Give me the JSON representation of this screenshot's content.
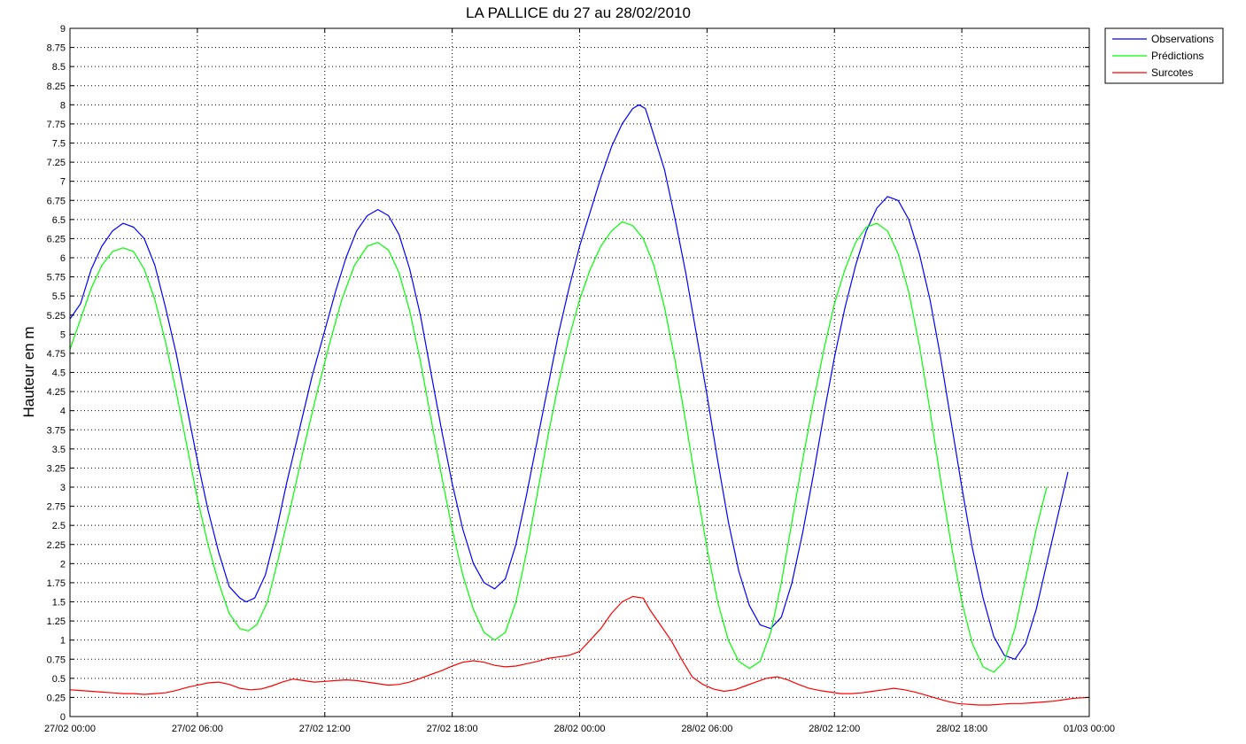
{
  "chart_data": {
    "type": "line",
    "title": "LA PALLICE du 27 au 28/02/2010",
    "ylabel": "Hauteur en m",
    "xlabel": "",
    "grid": true,
    "legend_position": "top-right-outside",
    "x_range_hours": [
      0,
      48
    ],
    "ylim": [
      0,
      9
    ],
    "y_ticks": [
      0,
      0.25,
      0.5,
      0.75,
      1,
      1.25,
      1.5,
      1.75,
      2,
      2.25,
      2.5,
      2.75,
      3,
      3.25,
      3.5,
      3.75,
      4,
      4.25,
      4.5,
      4.75,
      5,
      5.25,
      5.5,
      5.75,
      6,
      6.25,
      6.5,
      6.75,
      7,
      7.25,
      7.5,
      7.75,
      8,
      8.25,
      8.5,
      8.75,
      9
    ],
    "y_tick_labels": [
      "0",
      "0.25",
      "0.5",
      "0.75",
      "1",
      "1.25",
      "1.5",
      "1.75",
      "2",
      "2.25",
      "2.5",
      "2.75",
      "3",
      "3.25",
      "3.5",
      "3.75",
      "4",
      "4.25",
      "4.5",
      "4.75",
      "5",
      "5.25",
      "5.5",
      "5.75",
      "6",
      "6.25",
      "6.5",
      "6.75",
      "7",
      "7.25",
      "7.5",
      "7.75",
      "8",
      "8.25",
      "8.5",
      "8.75",
      "9"
    ],
    "x_ticks": [
      0,
      6,
      12,
      18,
      24,
      30,
      36,
      42,
      48
    ],
    "x_tick_labels": [
      "27/02 00:00",
      "27/02 06:00",
      "27/02 12:00",
      "27/02 18:00",
      "28/02 00:00",
      "28/02 06:00",
      "28/02 12:00",
      "28/02 18:00",
      "01/03 00:00"
    ],
    "series": [
      {
        "name": "Observations",
        "color": "#0000ff",
        "points": [
          [
            0,
            5.2
          ],
          [
            0.5,
            5.4
          ],
          [
            1,
            5.85
          ],
          [
            1.5,
            6.15
          ],
          [
            2,
            6.35
          ],
          [
            2.5,
            6.45
          ],
          [
            3,
            6.4
          ],
          [
            3.5,
            6.25
          ],
          [
            4,
            5.9
          ],
          [
            4.5,
            5.35
          ],
          [
            5,
            4.75
          ],
          [
            5.5,
            4.05
          ],
          [
            6,
            3.35
          ],
          [
            6.5,
            2.7
          ],
          [
            7,
            2.15
          ],
          [
            7.5,
            1.7
          ],
          [
            8,
            1.55
          ],
          [
            8.3,
            1.5
          ],
          [
            8.7,
            1.55
          ],
          [
            9.2,
            1.85
          ],
          [
            9.7,
            2.4
          ],
          [
            10.2,
            3.05
          ],
          [
            10.8,
            3.75
          ],
          [
            11.4,
            4.45
          ],
          [
            12,
            5.05
          ],
          [
            12.5,
            5.55
          ],
          [
            13,
            6.0
          ],
          [
            13.5,
            6.35
          ],
          [
            14,
            6.55
          ],
          [
            14.5,
            6.63
          ],
          [
            15,
            6.55
          ],
          [
            15.5,
            6.3
          ],
          [
            16,
            5.85
          ],
          [
            16.5,
            5.25
          ],
          [
            17,
            4.5
          ],
          [
            17.5,
            3.75
          ],
          [
            18,
            3.05
          ],
          [
            18.5,
            2.45
          ],
          [
            19,
            2.0
          ],
          [
            19.5,
            1.75
          ],
          [
            20,
            1.67
          ],
          [
            20.5,
            1.8
          ],
          [
            21,
            2.25
          ],
          [
            21.5,
            2.9
          ],
          [
            22,
            3.6
          ],
          [
            22.5,
            4.3
          ],
          [
            23,
            5.0
          ],
          [
            23.5,
            5.6
          ],
          [
            24,
            6.15
          ],
          [
            24.5,
            6.6
          ],
          [
            25,
            7.05
          ],
          [
            25.5,
            7.45
          ],
          [
            26,
            7.75
          ],
          [
            26.5,
            7.95
          ],
          [
            26.8,
            8.0
          ],
          [
            27.1,
            7.95
          ],
          [
            27.5,
            7.6
          ],
          [
            28,
            7.15
          ],
          [
            28.5,
            6.5
          ],
          [
            29,
            5.8
          ],
          [
            29.5,
            5.0
          ],
          [
            30,
            4.2
          ],
          [
            30.5,
            3.35
          ],
          [
            31,
            2.55
          ],
          [
            31.5,
            1.9
          ],
          [
            32,
            1.45
          ],
          [
            32.5,
            1.2
          ],
          [
            33,
            1.15
          ],
          [
            33.5,
            1.3
          ],
          [
            34,
            1.75
          ],
          [
            34.5,
            2.4
          ],
          [
            35,
            3.15
          ],
          [
            35.5,
            3.95
          ],
          [
            36,
            4.7
          ],
          [
            36.5,
            5.35
          ],
          [
            37,
            5.9
          ],
          [
            37.5,
            6.35
          ],
          [
            38,
            6.65
          ],
          [
            38.5,
            6.8
          ],
          [
            39,
            6.75
          ],
          [
            39.5,
            6.5
          ],
          [
            40,
            6.05
          ],
          [
            40.5,
            5.45
          ],
          [
            41,
            4.7
          ],
          [
            41.5,
            3.85
          ],
          [
            42,
            3.0
          ],
          [
            42.5,
            2.2
          ],
          [
            43,
            1.55
          ],
          [
            43.5,
            1.05
          ],
          [
            44,
            0.8
          ],
          [
            44.5,
            0.75
          ],
          [
            45,
            0.95
          ],
          [
            45.5,
            1.4
          ],
          [
            46,
            2.0
          ],
          [
            46.5,
            2.6
          ],
          [
            47,
            3.2
          ]
        ]
      },
      {
        "name": "Prédictions",
        "color": "#00ff00",
        "points": [
          [
            0,
            4.8
          ],
          [
            0.5,
            5.2
          ],
          [
            1,
            5.6
          ],
          [
            1.5,
            5.9
          ],
          [
            2,
            6.08
          ],
          [
            2.5,
            6.13
          ],
          [
            3,
            6.08
          ],
          [
            3.5,
            5.85
          ],
          [
            4,
            5.45
          ],
          [
            4.5,
            4.9
          ],
          [
            5,
            4.25
          ],
          [
            5.5,
            3.55
          ],
          [
            6,
            2.85
          ],
          [
            6.5,
            2.25
          ],
          [
            7,
            1.75
          ],
          [
            7.5,
            1.35
          ],
          [
            8,
            1.15
          ],
          [
            8.4,
            1.12
          ],
          [
            8.8,
            1.2
          ],
          [
            9.3,
            1.5
          ],
          [
            9.8,
            2.05
          ],
          [
            10.4,
            2.75
          ],
          [
            11,
            3.5
          ],
          [
            11.6,
            4.2
          ],
          [
            12.2,
            4.85
          ],
          [
            12.8,
            5.45
          ],
          [
            13.4,
            5.9
          ],
          [
            14,
            6.15
          ],
          [
            14.5,
            6.2
          ],
          [
            15,
            6.1
          ],
          [
            15.5,
            5.8
          ],
          [
            16,
            5.3
          ],
          [
            16.5,
            4.65
          ],
          [
            17,
            3.9
          ],
          [
            17.5,
            3.15
          ],
          [
            18,
            2.45
          ],
          [
            18.5,
            1.85
          ],
          [
            19,
            1.4
          ],
          [
            19.5,
            1.1
          ],
          [
            20,
            1.0
          ],
          [
            20.5,
            1.1
          ],
          [
            21,
            1.5
          ],
          [
            21.5,
            2.15
          ],
          [
            22,
            2.9
          ],
          [
            22.5,
            3.65
          ],
          [
            23,
            4.35
          ],
          [
            23.5,
            4.95
          ],
          [
            24,
            5.45
          ],
          [
            24.5,
            5.85
          ],
          [
            25,
            6.15
          ],
          [
            25.5,
            6.35
          ],
          [
            26,
            6.47
          ],
          [
            26.5,
            6.42
          ],
          [
            27,
            6.25
          ],
          [
            27.5,
            5.9
          ],
          [
            28,
            5.35
          ],
          [
            28.5,
            4.65
          ],
          [
            29,
            3.85
          ],
          [
            29.5,
            3.0
          ],
          [
            30,
            2.2
          ],
          [
            30.5,
            1.5
          ],
          [
            31,
            1.0
          ],
          [
            31.5,
            0.72
          ],
          [
            32,
            0.63
          ],
          [
            32.5,
            0.72
          ],
          [
            33,
            1.1
          ],
          [
            33.5,
            1.75
          ],
          [
            34,
            2.55
          ],
          [
            34.5,
            3.35
          ],
          [
            35,
            4.1
          ],
          [
            35.5,
            4.8
          ],
          [
            36,
            5.4
          ],
          [
            36.5,
            5.85
          ],
          [
            37,
            6.2
          ],
          [
            37.5,
            6.4
          ],
          [
            38,
            6.45
          ],
          [
            38.5,
            6.35
          ],
          [
            39,
            6.05
          ],
          [
            39.5,
            5.55
          ],
          [
            40,
            4.85
          ],
          [
            40.5,
            4.0
          ],
          [
            41,
            3.1
          ],
          [
            41.5,
            2.25
          ],
          [
            42,
            1.5
          ],
          [
            42.5,
            0.95
          ],
          [
            43,
            0.65
          ],
          [
            43.5,
            0.58
          ],
          [
            44,
            0.72
          ],
          [
            44.5,
            1.15
          ],
          [
            45,
            1.8
          ],
          [
            45.5,
            2.45
          ],
          [
            46,
            3.0
          ]
        ]
      },
      {
        "name": "Surcotes",
        "color": "#ff0000",
        "points": [
          [
            0,
            0.35
          ],
          [
            0.5,
            0.34
          ],
          [
            1,
            0.33
          ],
          [
            1.5,
            0.32
          ],
          [
            2,
            0.31
          ],
          [
            2.5,
            0.3
          ],
          [
            3,
            0.3
          ],
          [
            3.5,
            0.29
          ],
          [
            4,
            0.3
          ],
          [
            4.5,
            0.31
          ],
          [
            5,
            0.34
          ],
          [
            5.5,
            0.38
          ],
          [
            6,
            0.41
          ],
          [
            6.5,
            0.44
          ],
          [
            7,
            0.45
          ],
          [
            7.5,
            0.42
          ],
          [
            8,
            0.37
          ],
          [
            8.5,
            0.35
          ],
          [
            9,
            0.36
          ],
          [
            9.5,
            0.4
          ],
          [
            10,
            0.45
          ],
          [
            10.5,
            0.49
          ],
          [
            11,
            0.47
          ],
          [
            11.5,
            0.45
          ],
          [
            12,
            0.46
          ],
          [
            12.5,
            0.47
          ],
          [
            13,
            0.48
          ],
          [
            13.5,
            0.47
          ],
          [
            14,
            0.45
          ],
          [
            14.5,
            0.43
          ],
          [
            15,
            0.41
          ],
          [
            15.5,
            0.42
          ],
          [
            16,
            0.45
          ],
          [
            16.5,
            0.5
          ],
          [
            17,
            0.55
          ],
          [
            17.5,
            0.6
          ],
          [
            18,
            0.66
          ],
          [
            18.5,
            0.71
          ],
          [
            19,
            0.73
          ],
          [
            19.5,
            0.71
          ],
          [
            20,
            0.67
          ],
          [
            20.5,
            0.65
          ],
          [
            21,
            0.66
          ],
          [
            21.5,
            0.69
          ],
          [
            22,
            0.72
          ],
          [
            22.5,
            0.76
          ],
          [
            23,
            0.78
          ],
          [
            23.5,
            0.8
          ],
          [
            24,
            0.85
          ],
          [
            24.5,
            1.0
          ],
          [
            25,
            1.15
          ],
          [
            25.5,
            1.35
          ],
          [
            26,
            1.5
          ],
          [
            26.5,
            1.57
          ],
          [
            27,
            1.55
          ],
          [
            27.3,
            1.4
          ],
          [
            27.8,
            1.2
          ],
          [
            28.3,
            1.0
          ],
          [
            28.8,
            0.75
          ],
          [
            29.3,
            0.52
          ],
          [
            29.8,
            0.42
          ],
          [
            30.3,
            0.36
          ],
          [
            30.8,
            0.33
          ],
          [
            31.3,
            0.35
          ],
          [
            31.8,
            0.4
          ],
          [
            32.3,
            0.45
          ],
          [
            32.8,
            0.5
          ],
          [
            33.3,
            0.52
          ],
          [
            33.8,
            0.48
          ],
          [
            34.3,
            0.42
          ],
          [
            34.8,
            0.37
          ],
          [
            35.3,
            0.34
          ],
          [
            35.8,
            0.32
          ],
          [
            36.3,
            0.3
          ],
          [
            36.8,
            0.3
          ],
          [
            37.3,
            0.31
          ],
          [
            37.8,
            0.33
          ],
          [
            38.3,
            0.35
          ],
          [
            38.8,
            0.37
          ],
          [
            39.3,
            0.35
          ],
          [
            39.8,
            0.32
          ],
          [
            40.3,
            0.28
          ],
          [
            40.8,
            0.24
          ],
          [
            41.3,
            0.2
          ],
          [
            41.8,
            0.17
          ],
          [
            42.3,
            0.16
          ],
          [
            42.8,
            0.15
          ],
          [
            43.3,
            0.15
          ],
          [
            43.8,
            0.16
          ],
          [
            44.3,
            0.17
          ],
          [
            44.8,
            0.17
          ],
          [
            45.3,
            0.18
          ],
          [
            45.8,
            0.19
          ],
          [
            46.3,
            0.2
          ],
          [
            46.8,
            0.22
          ],
          [
            47.3,
            0.24
          ],
          [
            48,
            0.25
          ]
        ]
      }
    ]
  }
}
